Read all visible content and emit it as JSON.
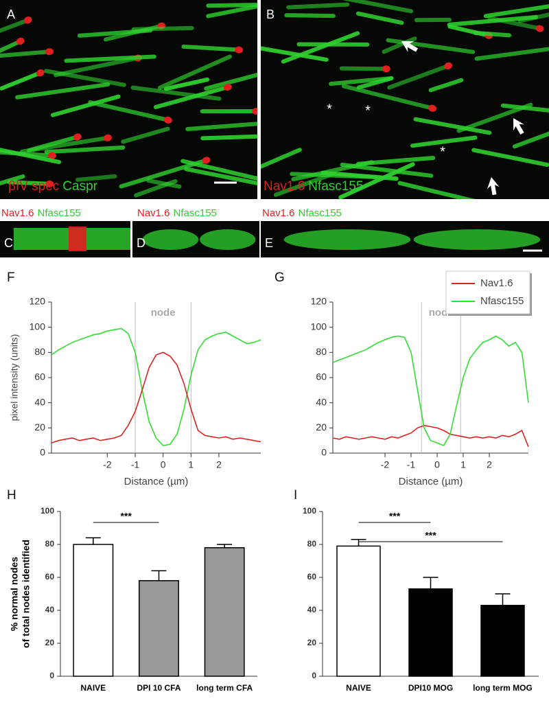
{
  "images": [
    {
      "label": "A",
      "markers": [
        {
          "text": "βIV spec",
          "color": "#e02020"
        },
        {
          "text": "Caspr",
          "color": "#2fd02f"
        }
      ]
    },
    {
      "label": "B",
      "markers": [
        {
          "text": "Nav1.6",
          "color": "#e02020"
        },
        {
          "text": "Nfasc155",
          "color": "#2fd02f"
        }
      ],
      "asterisks": [
        "*",
        "*",
        "*"
      ]
    },
    {
      "label": "C",
      "markers": [
        {
          "text": "Nav1.6",
          "color": "#e02020"
        },
        {
          "text": "Nfasc155",
          "color": "#2fd02f"
        }
      ]
    },
    {
      "label": "D",
      "markers": [
        {
          "text": "Nav1.6",
          "color": "#e02020"
        },
        {
          "text": "Nfasc155",
          "color": "#2fd02f"
        }
      ]
    },
    {
      "label": "E",
      "markers": [
        {
          "text": "Nav1.6",
          "color": "#e02020"
        },
        {
          "text": "Nfasc155",
          "color": "#2fd02f"
        }
      ]
    }
  ],
  "chart_data": [
    {
      "type": "line",
      "panel_label": "F",
      "ylabel": "pixel intensity (units)",
      "xlabel": "Distance (µm)",
      "annotation": "node",
      "node_lines": [
        -1,
        1
      ],
      "x": [
        -4,
        -3.75,
        -3.5,
        -3.25,
        -3,
        -2.75,
        -2.5,
        -2.25,
        -2,
        -1.75,
        -1.5,
        -1.25,
        -1,
        -0.75,
        -0.5,
        -0.25,
        0,
        0.25,
        0.5,
        0.75,
        1,
        1.25,
        1.5,
        1.75,
        2,
        2.25,
        2.5,
        2.75,
        3,
        3.25,
        3.5
      ],
      "series": [
        {
          "color": "#33dd33",
          "values": [
            78,
            82,
            85,
            88,
            90,
            92,
            94,
            95,
            97,
            98,
            99,
            95,
            80,
            50,
            25,
            12,
            6,
            7,
            15,
            35,
            62,
            82,
            90,
            93,
            95,
            96,
            93,
            90,
            87,
            88,
            90
          ]
        },
        {
          "color": "#dd2222",
          "values": [
            8,
            10,
            11,
            12,
            10,
            11,
            12,
            10,
            11,
            12,
            14,
            22,
            33,
            50,
            68,
            78,
            80,
            77,
            70,
            55,
            35,
            18,
            14,
            13,
            12,
            13,
            11,
            12,
            11,
            10,
            9
          ]
        }
      ],
      "xlim": [
        -4,
        3.5
      ],
      "ylim": [
        0,
        120
      ],
      "xticks": [
        -2,
        -1,
        0,
        1,
        2
      ],
      "yticks": [
        0,
        20,
        40,
        60,
        80,
        100,
        120
      ]
    },
    {
      "type": "line",
      "panel_label": "G",
      "annotation": "node",
      "xlabel": "Distance (µm)",
      "node_lines": [
        -0.6,
        0.9
      ],
      "legend": "upper-right",
      "x": [
        -4,
        -3.75,
        -3.5,
        -3.25,
        -3,
        -2.75,
        -2.5,
        -2.25,
        -2,
        -1.75,
        -1.5,
        -1.25,
        -1,
        -0.75,
        -0.5,
        -0.25,
        0,
        0.25,
        0.5,
        0.75,
        1,
        1.25,
        1.5,
        1.75,
        2,
        2.25,
        2.5,
        2.75,
        3,
        3.25,
        3.5
      ],
      "series": [
        {
          "name": "Nav1.6",
          "color": "#dd2222",
          "values": [
            12,
            11,
            13,
            12,
            11,
            12,
            13,
            12,
            11,
            13,
            12,
            14,
            16,
            20,
            22,
            21,
            20,
            18,
            15,
            14,
            13,
            12,
            13,
            12,
            13,
            12,
            14,
            13,
            15,
            18,
            5
          ]
        },
        {
          "name": "Nfasc155",
          "color": "#33dd33",
          "values": [
            72,
            74,
            76,
            78,
            80,
            82,
            85,
            88,
            90,
            92,
            93,
            92,
            80,
            50,
            20,
            10,
            8,
            6,
            15,
            38,
            60,
            75,
            82,
            88,
            90,
            93,
            90,
            85,
            88,
            80,
            40
          ]
        }
      ],
      "xlim": [
        -4,
        3.5
      ],
      "ylim": [
        0,
        120
      ],
      "xticks": [
        -2,
        -1,
        0,
        1,
        2
      ],
      "yticks": [
        0,
        20,
        40,
        60,
        80,
        100,
        120
      ]
    },
    {
      "type": "bar",
      "panel_label": "H",
      "ylabel": [
        "% normal nodes",
        "of total nodes identified"
      ],
      "categories": [
        "NAIVE",
        "DPI 10 CFA",
        "long term CFA"
      ],
      "values": [
        80,
        58,
        78
      ],
      "errors": [
        4,
        6,
        2
      ],
      "colors": [
        "#ffffff",
        "#999999",
        "#999999"
      ],
      "significance": [
        {
          "from": 0,
          "to": 1,
          "label": "***"
        }
      ],
      "ylim": [
        0,
        100
      ],
      "yticks": [
        0,
        20,
        40,
        60,
        80,
        100
      ]
    },
    {
      "type": "bar",
      "panel_label": "I",
      "categories": [
        "NAIVE",
        "DPI10 MOG",
        "long term MOG"
      ],
      "values": [
        79,
        53,
        43
      ],
      "errors": [
        4,
        7,
        7
      ],
      "colors": [
        "#ffffff",
        "#000000",
        "#000000"
      ],
      "significance": [
        {
          "from": 0,
          "to": 1,
          "label": "***"
        },
        {
          "from": 0,
          "to": 2,
          "label": "***"
        }
      ],
      "ylim": [
        0,
        100
      ],
      "yticks": [
        0,
        20,
        40,
        60,
        80,
        100
      ]
    }
  ]
}
